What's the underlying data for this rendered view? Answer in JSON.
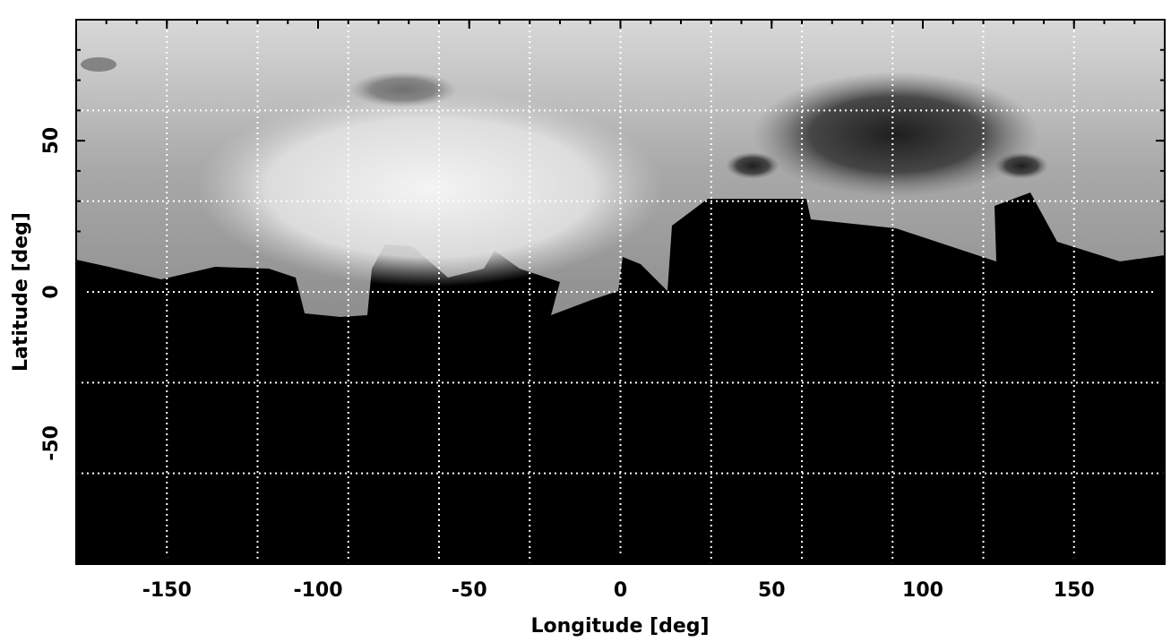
{
  "chart_data": {
    "type": "image-map",
    "xlabel": "Longitude [deg]",
    "ylabel": "Latitude [deg]",
    "xlim": [
      -180,
      180
    ],
    "ylim": [
      -90,
      90
    ],
    "xticks": [
      -150,
      -100,
      -50,
      0,
      50,
      100,
      150
    ],
    "yticks": [
      -50,
      0,
      50
    ],
    "xgrid": [
      -150,
      -120,
      -90,
      -60,
      -30,
      0,
      30,
      60,
      90,
      120,
      150
    ],
    "ygrid": [
      -60,
      -30,
      0,
      30,
      60
    ],
    "minor_tick_step": 10,
    "grid": true
  }
}
